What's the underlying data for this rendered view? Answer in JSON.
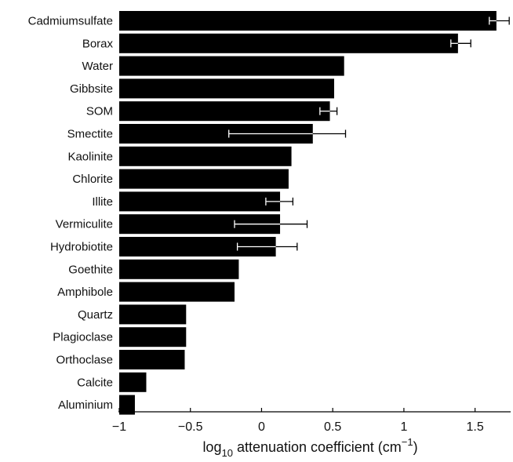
{
  "chart_data": {
    "type": "bar",
    "orientation": "horizontal",
    "categories": [
      "Cadmiumsulfate",
      "Borax",
      "Water",
      "Gibbsite",
      "SOM",
      "Smectite",
      "Kaolinite",
      "Chlorite",
      "Illite",
      "Vermiculite",
      "Hydrobiotite",
      "Goethite",
      "Amphibole",
      "Quartz",
      "Plagioclase",
      "Orthoclase",
      "Calcite",
      "Aluminium"
    ],
    "values": [
      1.65,
      1.38,
      0.58,
      0.51,
      0.48,
      0.36,
      0.21,
      0.19,
      0.13,
      0.13,
      0.1,
      -0.16,
      -0.19,
      -0.53,
      -0.53,
      -0.54,
      -0.81,
      -0.89
    ],
    "error_bars": [
      {
        "category": "Cadmiumsulfate",
        "low": 1.6,
        "high": 1.74
      },
      {
        "category": "Borax",
        "low": 1.33,
        "high": 1.47
      },
      {
        "category": "SOM",
        "low": 0.41,
        "high": 0.53
      },
      {
        "category": "Smectite",
        "low": -0.23,
        "high": 0.59
      },
      {
        "category": "Illite",
        "low": 0.03,
        "high": 0.22
      },
      {
        "category": "Vermiculite",
        "low": -0.19,
        "high": 0.32
      },
      {
        "category": "Hydrobiotite",
        "low": -0.17,
        "high": 0.25
      }
    ],
    "bar_color": "#000000",
    "error_bar_color": "#ffffff",
    "xlim": [
      -1,
      1.75
    ],
    "xticks": [
      -1,
      -0.5,
      0,
      0.5,
      1,
      1.5
    ],
    "xtick_labels": [
      "−1",
      "−0.5",
      "0",
      "0.5",
      "1",
      "1.5"
    ],
    "xlabel": {
      "prefix": "log",
      "prefix_sub": "10",
      "main": " attenuation coefficient (cm",
      "main_sup": "−1",
      "suffix": ")"
    },
    "grid": false,
    "legend": "none"
  }
}
